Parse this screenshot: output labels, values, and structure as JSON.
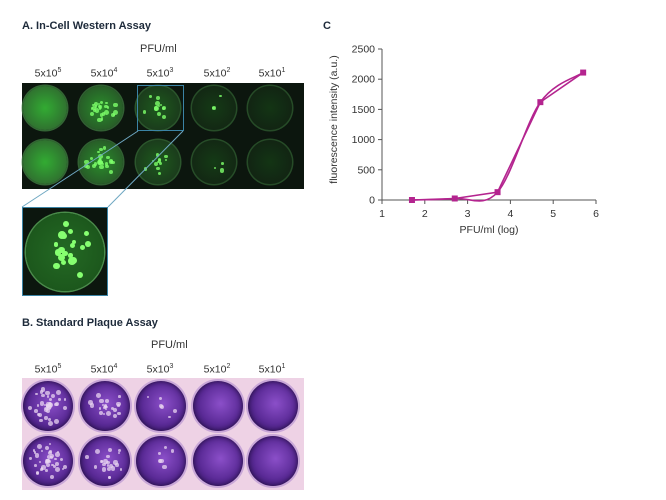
{
  "panel_a": {
    "title": "A. In-Cell Western Assay",
    "pfu_label": "PFU/ml",
    "concentrations": [
      {
        "base": "5x10",
        "exp": "5"
      },
      {
        "base": "5x10",
        "exp": "4"
      },
      {
        "base": "5x10",
        "exp": "3"
      },
      {
        "base": "5x10",
        "exp": "2"
      },
      {
        "base": "5x10",
        "exp": "1"
      }
    ],
    "well_brightness": [
      0.95,
      0.8,
      0.5,
      0.25,
      0.2
    ],
    "colors": {
      "plate": "#0c160e",
      "fluorescence": "#3ecf3a",
      "zoom_box": "#3b84a5"
    }
  },
  "panel_b": {
    "title": "B. Standard Plaque Assay",
    "pfu_label": "PFU/ml",
    "concentrations": [
      {
        "base": "5x10",
        "exp": "5"
      },
      {
        "base": "5x10",
        "exp": "4"
      },
      {
        "base": "5x10",
        "exp": "3"
      },
      {
        "base": "5x10",
        "exp": "2"
      },
      {
        "base": "5x10",
        "exp": "1"
      }
    ],
    "colors": {
      "stain": "#5a2a96",
      "plate": "#eed2e5"
    }
  },
  "panel_c": {
    "title": "C"
  },
  "chart_data": {
    "type": "line",
    "title": "",
    "xlabel": "PFU/ml (log)",
    "ylabel": "fluorescence intensity (a.u.)",
    "xlim": [
      1,
      6
    ],
    "ylim": [
      0,
      2500
    ],
    "xticks": [
      1,
      2,
      3,
      4,
      5,
      6
    ],
    "yticks": [
      0,
      500,
      1000,
      1500,
      2000,
      2500
    ],
    "grid": false,
    "series": [
      {
        "x": [
          1.7,
          2.7,
          3.7,
          4.7,
          5.7
        ],
        "y": [
          0,
          25,
          130,
          1620,
          2110
        ],
        "color": "#b4248f",
        "marker": "square"
      }
    ]
  }
}
